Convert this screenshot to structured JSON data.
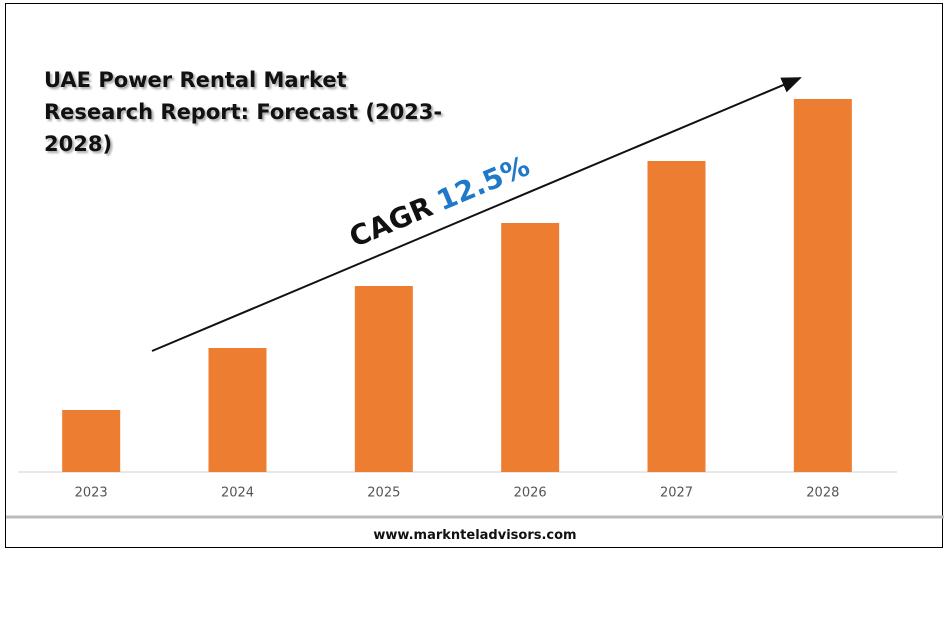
{
  "chart_data": {
    "type": "bar",
    "title": "UAE Power Rental Market Research Report: Forecast (2023-2028)",
    "categories": [
      "2023",
      "2024",
      "2025",
      "2026",
      "2027",
      "2028"
    ],
    "values": [
      62,
      124,
      186,
      249,
      311,
      373
    ],
    "color": "#ed7d31",
    "annotation": {
      "label": "CAGR",
      "value": "12.5%"
    },
    "footer": "www.marknteladvisors.com"
  }
}
